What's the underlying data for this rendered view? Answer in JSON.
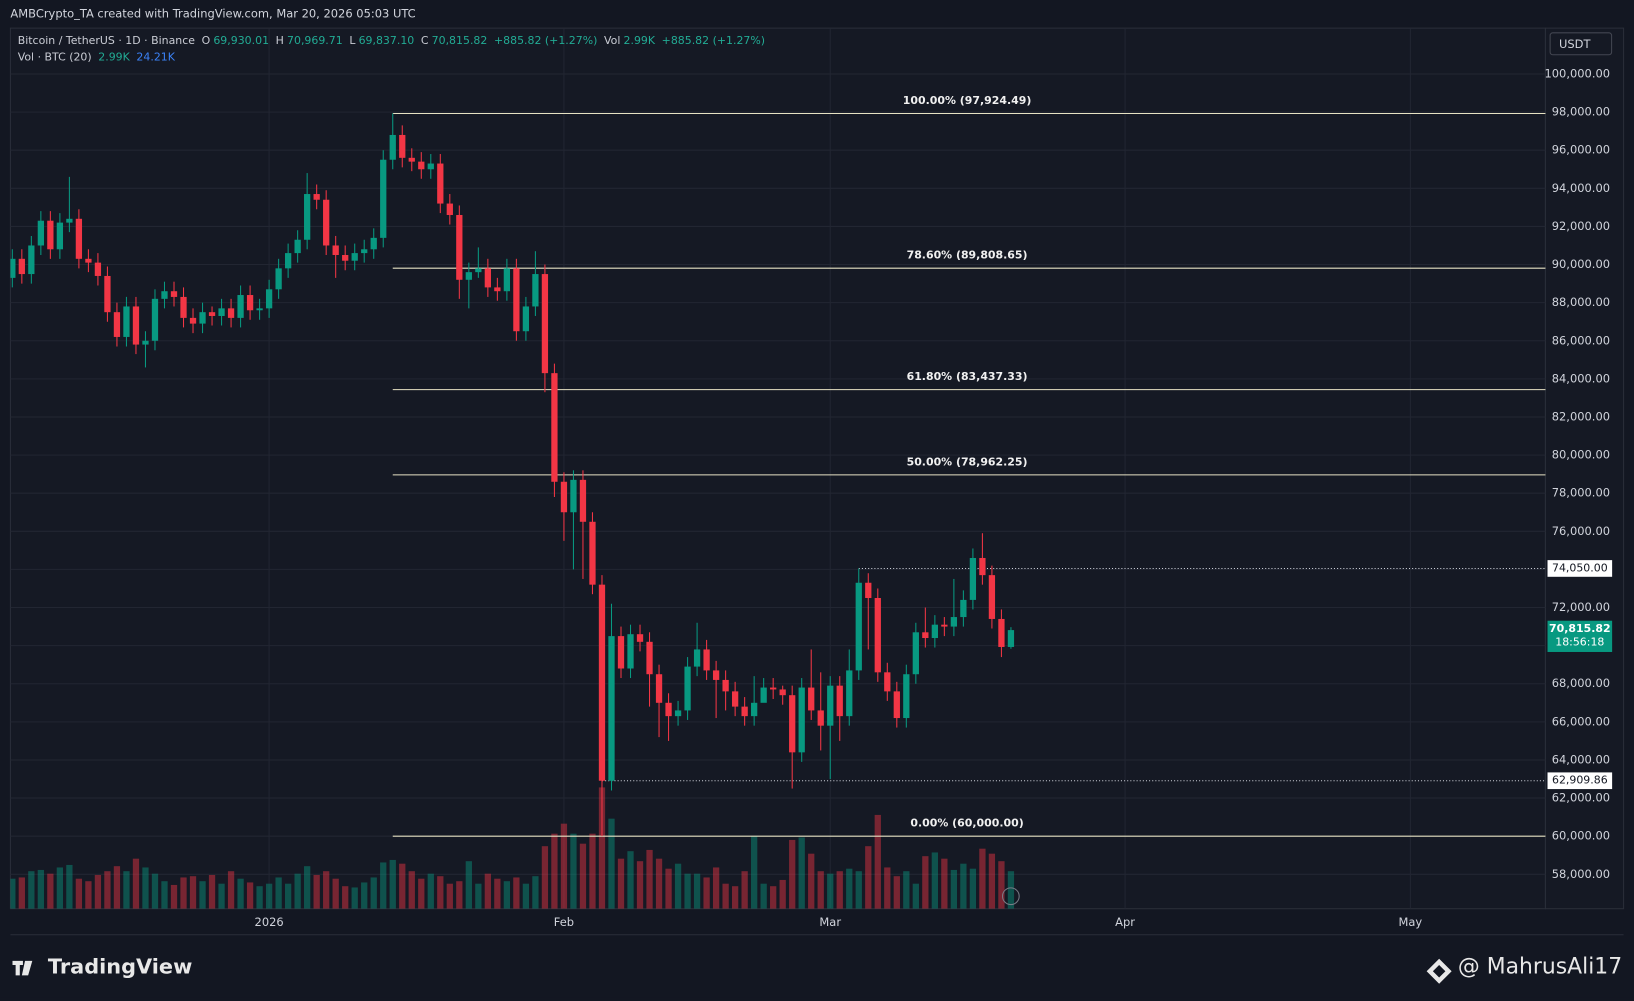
{
  "chart_data": {
    "type": "candlestick",
    "header": "AMBCrypto_TA created with TradingView.com, Mar 20, 2026 05:03 UTC",
    "symbol": "Bitcoin / TetherUS · 1D · Binance",
    "ohlc_legend": [
      {
        "key": "O",
        "value": "69,930.01"
      },
      {
        "key": "H",
        "value": "70,969.71"
      },
      {
        "key": "L",
        "value": "69,837.10"
      },
      {
        "key": "C",
        "value": "70,815.82"
      }
    ],
    "change": "+885.82 (+1.27%)",
    "vol_key": "Vol",
    "vol_value": "2.99K",
    "vol_change": "+885.82 (+1.27%)",
    "volume_legend": {
      "name": "Vol · BTC (20)",
      "value": "2.99K",
      "ma": "24.21K"
    },
    "currency": "USDT",
    "up_color": "#089981",
    "down_color": "#f23645",
    "grid": true,
    "open": [
      89300,
      90300,
      89500,
      91000,
      92300,
      90800,
      92200,
      92400,
      90300,
      90100,
      89400,
      87500,
      86200,
      87800,
      85800,
      86000,
      88200,
      88600,
      88300,
      87200,
      86900,
      87500,
      87300,
      87700,
      87200,
      88400,
      87600,
      87700,
      88700,
      89800,
      90600,
      91300,
      93700,
      93400,
      91000,
      90500,
      90200,
      90600,
      90800,
      91400,
      95500,
      96800,
      95600,
      95400,
      95000,
      95300,
      93200,
      92600,
      89200,
      89600,
      89800,
      88800,
      88600,
      89800,
      86500,
      87800,
      89500,
      84300,
      78600,
      77000,
      78700,
      76500,
      73200,
      62909.86,
      70500,
      68800,
      70600,
      70200,
      68500,
      67000,
      66300,
      66600,
      68900,
      69800,
      68700,
      68200,
      67600,
      66800,
      66300,
      67000,
      67800,
      67700,
      67400,
      64400,
      67800,
      66600,
      65800,
      67900,
      66300,
      68700,
      73300,
      72500,
      68600,
      67600,
      66200,
      68500,
      70700,
      70400,
      71100,
      71000,
      71500,
      72400,
      74600,
      73700,
      71400,
      69930.01
    ],
    "high": [
      90800,
      90800,
      91500,
      92800,
      92800,
      92700,
      94600,
      92900,
      90800,
      90600,
      89900,
      88000,
      88300,
      88300,
      86500,
      88700,
      89100,
      89100,
      88800,
      87700,
      88000,
      87800,
      88200,
      88200,
      88900,
      88900,
      88200,
      89200,
      90300,
      91100,
      91800,
      94800,
      94200,
      93900,
      91500,
      91000,
      91100,
      91300,
      91900,
      96000,
      97924.49,
      97300,
      96100,
      95900,
      95800,
      95800,
      93700,
      93100,
      90100,
      90900,
      90300,
      89300,
      90300,
      90300,
      88300,
      90700,
      90000,
      84800,
      79100,
      79200,
      79200,
      77000,
      73700,
      72200,
      71000,
      71100,
      71100,
      70700,
      69000,
      67500,
      67100,
      69400,
      71200,
      70300,
      69200,
      68700,
      68100,
      67300,
      68400,
      68300,
      68300,
      67900,
      67900,
      68300,
      69800,
      68600,
      68400,
      68400,
      69800,
      74050,
      73800,
      73000,
      69100,
      68100,
      69000,
      71200,
      72000,
      71600,
      71500,
      73500,
      72900,
      75100,
      75900,
      74200,
      71900,
      70969.71
    ],
    "low": [
      88800,
      89000,
      89000,
      90500,
      90300,
      90300,
      91700,
      89800,
      89600,
      88900,
      87000,
      85700,
      85700,
      85300,
      84600,
      85500,
      87700,
      87800,
      86700,
      86400,
      86400,
      86800,
      86800,
      86700,
      86700,
      87100,
      87100,
      87200,
      88200,
      89300,
      90100,
      90800,
      92900,
      90500,
      89300,
      89700,
      89700,
      90100,
      90300,
      90900,
      95000,
      95100,
      94900,
      94500,
      94500,
      92700,
      92100,
      88200,
      87700,
      89300,
      88300,
      88100,
      88100,
      86000,
      86000,
      87300,
      83300,
      77800,
      75500,
      74000,
      73500,
      72700,
      60000,
      62400,
      68300,
      68300,
      69700,
      66800,
      65200,
      65000,
      65800,
      66100,
      68400,
      68200,
      66200,
      66600,
      66300,
      65800,
      65800,
      67300,
      67200,
      66900,
      62500,
      63900,
      66100,
      64500,
      63000,
      65000,
      65800,
      68200,
      69800,
      68100,
      67100,
      65700,
      65700,
      68000,
      69900,
      69900,
      70500,
      70500,
      71000,
      71900,
      73200,
      70900,
      69400,
      69837.1
    ],
    "close": [
      90300,
      89500,
      91000,
      92300,
      90800,
      92200,
      92400,
      90300,
      90100,
      89400,
      87500,
      86200,
      87800,
      85800,
      86000,
      88200,
      88600,
      88300,
      87200,
      86900,
      87500,
      87300,
      87700,
      87200,
      88400,
      87600,
      87700,
      88700,
      89800,
      90600,
      91300,
      93700,
      93400,
      91000,
      90500,
      90200,
      90600,
      90800,
      91400,
      95500,
      96800,
      95600,
      95400,
      95000,
      95300,
      93200,
      92600,
      89200,
      89600,
      89800,
      88800,
      88600,
      89800,
      86500,
      87800,
      89500,
      84300,
      78600,
      77000,
      78700,
      76500,
      73200,
      62909.86,
      70500,
      68800,
      70600,
      70200,
      68500,
      67000,
      66300,
      66600,
      68900,
      69800,
      68700,
      68200,
      67600,
      66800,
      66300,
      67000,
      67800,
      67700,
      67400,
      64400,
      67800,
      66600,
      65800,
      67900,
      66300,
      68700,
      73300,
      72500,
      68600,
      67600,
      66200,
      68500,
      70700,
      70400,
      71100,
      71000,
      71500,
      72400,
      74600,
      73700,
      71400,
      69930.01,
      70815.82
    ],
    "volume": [
      24,
      25,
      30,
      31,
      28,
      33,
      35,
      24,
      22,
      27,
      30,
      34,
      30,
      40,
      33,
      28,
      22,
      19,
      25,
      26,
      22,
      27,
      20,
      30,
      24,
      21,
      18,
      20,
      25,
      20,
      28,
      34,
      27,
      30,
      24,
      18,
      17,
      21,
      25,
      37,
      39,
      36,
      30,
      24,
      28,
      26,
      20,
      22,
      38,
      20,
      28,
      24,
      22,
      25,
      20,
      26,
      50,
      60,
      68,
      60,
      52,
      60,
      97,
      72,
      40,
      46,
      38,
      47,
      40,
      32,
      36,
      28,
      28,
      25,
      33,
      20,
      18,
      30,
      58,
      20,
      18,
      23,
      55,
      57,
      44,
      30,
      28,
      30,
      32,
      30,
      50,
      75,
      33,
      26,
      30,
      20,
      42,
      45,
      40,
      31,
      36,
      32,
      48,
      44,
      38,
      30
    ],
    "ylim": [
      56194,
      102406
    ],
    "yticks": [
      {
        "value": 58000,
        "label": "58,000.00"
      },
      {
        "value": 60000,
        "label": "60,000.00"
      },
      {
        "value": 62000,
        "label": "62,000.00"
      },
      {
        "value": 64000,
        "label": "64,000.00"
      },
      {
        "value": 66000,
        "label": "66,000.00"
      },
      {
        "value": 68000,
        "label": "68,000.00"
      },
      {
        "value": 70000,
        "label": "70,000.00"
      },
      {
        "value": 72000,
        "label": "72,000.00"
      },
      {
        "value": 74000,
        "label": "74,000.00"
      },
      {
        "value": 76000,
        "label": "76,000.00"
      },
      {
        "value": 78000,
        "label": "78,000.00"
      },
      {
        "value": 80000,
        "label": "80,000.00"
      },
      {
        "value": 82000,
        "label": "82,000.00"
      },
      {
        "value": 84000,
        "label": "84,000.00"
      },
      {
        "value": 86000,
        "label": "86,000.00"
      },
      {
        "value": 88000,
        "label": "88,000.00"
      },
      {
        "value": 90000,
        "label": "90,000.00"
      },
      {
        "value": 92000,
        "label": "92,000.00"
      },
      {
        "value": 94000,
        "label": "94,000.00"
      },
      {
        "value": 96000,
        "label": "96,000.00"
      },
      {
        "value": 98000,
        "label": "98,000.00"
      },
      {
        "value": 100000,
        "label": "100,000.00"
      }
    ],
    "xlim": [
      -0.2,
      161.2
    ],
    "xticks": [
      {
        "value": 27,
        "label": "2026"
      },
      {
        "value": 58,
        "label": "Feb"
      },
      {
        "value": 86,
        "label": "Mar"
      },
      {
        "value": 117,
        "label": "Apr"
      },
      {
        "value": 147,
        "label": "May"
      }
    ],
    "fib_color": "#e6e2c3",
    "fib_levels": [
      {
        "value": 97924.49,
        "label": "100.00% (97,924.49)"
      },
      {
        "value": 89808.65,
        "label": "78.60% (89,808.65)"
      },
      {
        "value": 83437.33,
        "label": "61.80% (83,437.33)"
      },
      {
        "value": 78962.25,
        "label": "50.00% (78,962.25)"
      },
      {
        "value": 60000,
        "label": "0.00% (60,000.00)"
      }
    ],
    "price_lines": [
      {
        "value": 74050,
        "label": "74,050.00"
      },
      {
        "value": 62909.86,
        "label": "62,909.86"
      }
    ],
    "last_price": {
      "value": 70815.82,
      "label": "70,815.82",
      "countdown": "18:56:18"
    }
  },
  "footer": {
    "brand": "TradingView",
    "watermark": "@ MahrusAli17"
  }
}
